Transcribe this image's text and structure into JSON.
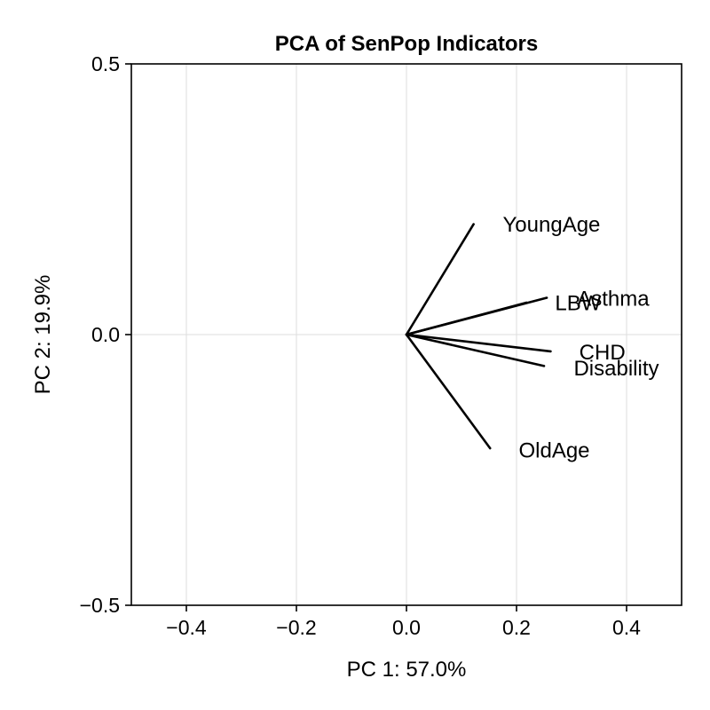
{
  "chart_data": {
    "type": "scatter",
    "title": "PCA of SenPop Indicators",
    "xlabel": "PC 1: 57.0%",
    "ylabel": "PC 2: 19.9%",
    "xlim": [
      -0.5,
      0.5
    ],
    "ylim": [
      -0.5,
      0.5
    ],
    "xticks": [
      -0.4,
      -0.2,
      0.0,
      0.2,
      0.4
    ],
    "xtick_labels": [
      "−0.4",
      "−0.2",
      "0.0",
      "0.2",
      "0.4"
    ],
    "yticks": [
      -0.5,
      0.0,
      0.5
    ],
    "ytick_labels": [
      "−0.5",
      "0.0",
      "0.5"
    ],
    "grid": true,
    "vectors": [
      {
        "label": "YoungAge",
        "x": 0.122,
        "y": 0.204,
        "label_x": 0.175,
        "label_y": 0.203
      },
      {
        "label": "Asthma",
        "x": 0.255,
        "y": 0.068,
        "label_x": 0.31,
        "label_y": 0.066
      },
      {
        "label": "LBW",
        "x": 0.218,
        "y": 0.059,
        "label_x": 0.27,
        "label_y": 0.058
      },
      {
        "label": "CHD",
        "x": 0.262,
        "y": -0.031,
        "label_x": 0.314,
        "label_y": -0.033
      },
      {
        "label": "Disability",
        "x": 0.25,
        "y": -0.058,
        "label_x": 0.304,
        "label_y": -0.062
      },
      {
        "label": "OldAge",
        "x": 0.152,
        "y": -0.21,
        "label_x": 0.204,
        "label_y": -0.214
      }
    ]
  }
}
